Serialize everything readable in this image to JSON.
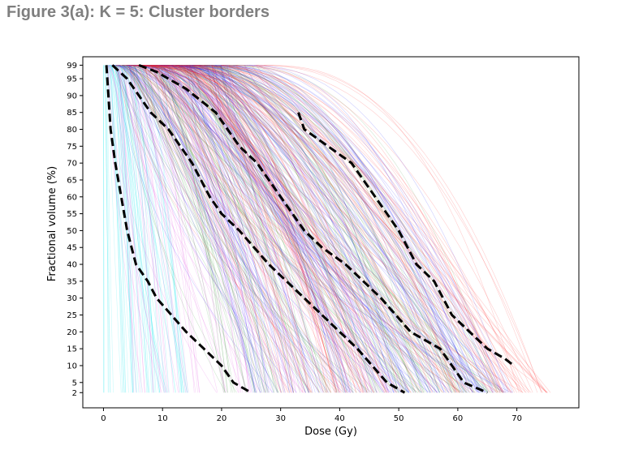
{
  "figure_title": "Figure 3(a): K = 5: Cluster borders",
  "chart_data": {
    "type": "line",
    "title": "",
    "xlabel": "Dose (Gy)",
    "ylabel": "Fractional volume (%)",
    "xlim": [
      -3.5,
      80.5
    ],
    "ylim": [
      -2.5,
      101.5
    ],
    "x_ticks": [
      0,
      10,
      20,
      30,
      40,
      50,
      60,
      70
    ],
    "y_ticks": [
      2,
      5,
      10,
      15,
      20,
      25,
      30,
      35,
      40,
      45,
      50,
      55,
      60,
      65,
      70,
      75,
      80,
      85,
      90,
      95,
      99
    ],
    "grid": false,
    "legend": "none",
    "background_series": [
      {
        "color": "#00e5ee",
        "dose_range": [
          0,
          15
        ],
        "curves": 60
      },
      {
        "color": "#e040e0",
        "dose_range": [
          5,
          50
        ],
        "curves": 90
      },
      {
        "color": "#2e8b2e",
        "dose_range": [
          20,
          68
        ],
        "curves": 140
      },
      {
        "color": "#1a1aff",
        "dose_range": [
          25,
          70
        ],
        "curves": 140
      },
      {
        "color": "#ff2020",
        "dose_range": [
          30,
          76
        ],
        "curves": 130
      }
    ],
    "cluster_borders": [
      {
        "x": [
          0.5,
          1.2,
          2,
          3,
          4,
          5.5,
          7.5,
          9,
          11.5,
          14,
          17,
          20,
          22,
          25
        ],
        "y": [
          99,
          80,
          70,
          60,
          50,
          40,
          35,
          30,
          25,
          20,
          15,
          10,
          5,
          2
        ]
      },
      {
        "x": [
          1.5,
          4,
          6,
          8,
          11,
          15,
          18,
          20,
          23,
          28,
          34,
          40,
          43,
          48,
          51
        ],
        "y": [
          99,
          95,
          90,
          85,
          80,
          70,
          60,
          55,
          50,
          40,
          30,
          20,
          15,
          5,
          2
        ]
      },
      {
        "x": [
          6,
          9,
          14,
          19,
          23,
          26,
          30,
          34,
          37,
          41,
          47,
          52,
          57,
          61,
          65
        ],
        "y": [
          99,
          97,
          92,
          85,
          75,
          70,
          60,
          50,
          45,
          40,
          30,
          20,
          15,
          5,
          2
        ]
      },
      {
        "x": [
          33,
          34,
          38,
          42,
          46,
          50,
          53,
          56,
          59,
          62,
          65,
          68,
          69.5
        ],
        "y": [
          85,
          80,
          75,
          70,
          60,
          50,
          40,
          35,
          25,
          20,
          15,
          12,
          10
        ]
      }
    ]
  }
}
